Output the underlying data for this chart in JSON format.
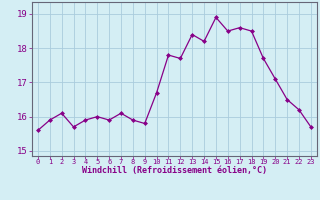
{
  "x": [
    0,
    1,
    2,
    3,
    4,
    5,
    6,
    7,
    8,
    9,
    10,
    11,
    12,
    13,
    14,
    15,
    16,
    17,
    18,
    19,
    20,
    21,
    22,
    23
  ],
  "y": [
    15.6,
    15.9,
    16.1,
    15.7,
    15.9,
    16.0,
    15.9,
    16.1,
    15.9,
    15.8,
    16.7,
    17.8,
    17.7,
    18.4,
    18.2,
    18.9,
    18.5,
    18.6,
    18.5,
    17.7,
    17.1,
    16.5,
    16.2,
    15.7
  ],
  "line_color": "#880088",
  "marker_color": "#880088",
  "bg_color": "#d4eef4",
  "grid_color": "#aaccdd",
  "axis_color": "#666677",
  "xlabel": "Windchill (Refroidissement éolien,°C)",
  "ylim": [
    14.85,
    19.35
  ],
  "xlim": [
    -0.5,
    23.5
  ],
  "yticks": [
    15,
    16,
    17,
    18,
    19
  ],
  "xticks": [
    0,
    1,
    2,
    3,
    4,
    5,
    6,
    7,
    8,
    9,
    10,
    11,
    12,
    13,
    14,
    15,
    16,
    17,
    18,
    19,
    20,
    21,
    22,
    23
  ]
}
